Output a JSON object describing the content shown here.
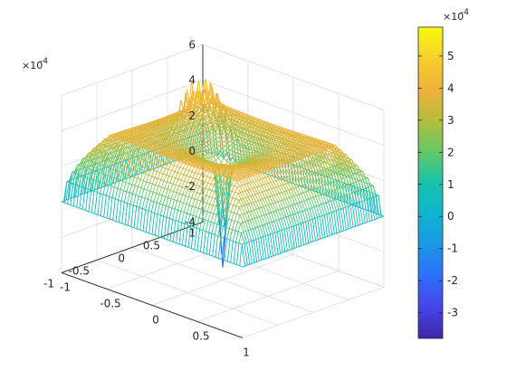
{
  "chart_data": {
    "type": "surface",
    "title": "",
    "xlabel": "",
    "ylabel": "",
    "zlabel": "",
    "colormap": "parula",
    "grid": true,
    "xlim": [
      -1,
      1
    ],
    "ylim": [
      -1,
      1
    ],
    "zlim": [
      -4,
      6
    ],
    "x_ticks": [
      "-1",
      "-0.5",
      "0",
      "0.5",
      "1"
    ],
    "y_ticks": [
      "-1",
      "-0.5",
      "0",
      "0.5",
      "1"
    ],
    "z_ticks": [
      "-4",
      "-2",
      "0",
      "2",
      "4",
      "6"
    ],
    "z_exponent": "×10",
    "z_exponent_power": "-4",
    "surface_description": {
      "edge_value": 0,
      "plateau_value": 3.9,
      "center_spike_min": -3.8,
      "ridge_peak_max": 5.7,
      "units_scale": "1e-4"
    },
    "colorbar": {
      "limits": [
        -3.8,
        5.9
      ],
      "ticks": [
        "-3",
        "-2",
        "-1",
        "0",
        "1",
        "2",
        "3",
        "4",
        "5"
      ],
      "exponent": "×10",
      "exponent_power": "-4",
      "location": "right"
    }
  }
}
